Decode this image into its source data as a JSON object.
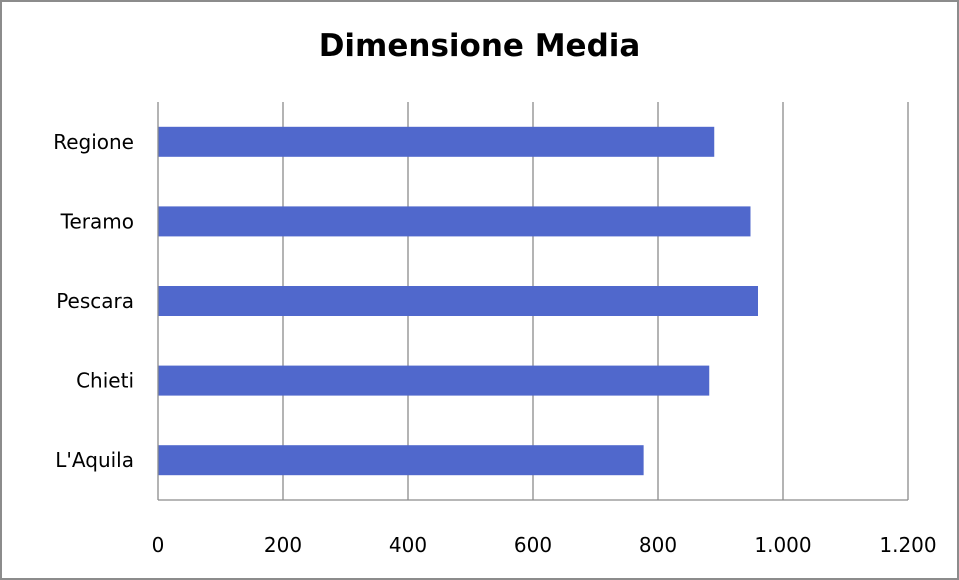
{
  "chart_data": {
    "type": "bar",
    "orientation": "horizontal",
    "title": "Dimensione Media",
    "xlabel": "",
    "ylabel": "",
    "categories": [
      "Regione",
      "Teramo",
      "Pescara",
      "Chieti",
      "L'Aquila"
    ],
    "values": [
      890,
      948,
      960,
      882,
      777
    ],
    "xlim": [
      0,
      1200
    ],
    "xticks": [
      0,
      200,
      400,
      600,
      800,
      1000,
      1200
    ],
    "xtick_labels": [
      "0",
      "200",
      "400",
      "600",
      "800",
      "1.000",
      "1.200"
    ],
    "grid": true,
    "legend": "none",
    "bar_color": "#5068CC"
  }
}
